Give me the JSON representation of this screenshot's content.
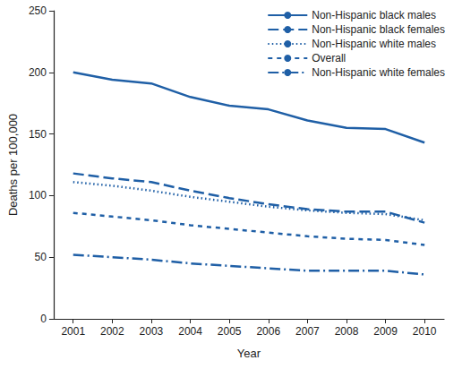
{
  "chart_data": {
    "type": "line",
    "x_label": "Year",
    "y_label": "Deaths per 100,000",
    "categories": [
      "2001",
      "2002",
      "2003",
      "2004",
      "2005",
      "2006",
      "2007",
      "2008",
      "2009",
      "2010"
    ],
    "series": [
      {
        "name": "Non-Hispanic black males",
        "color": "#1f5fa6",
        "line_style": "solid",
        "values": [
          200,
          194,
          191,
          180,
          173,
          170,
          161,
          155,
          154,
          143
        ]
      },
      {
        "name": "Non-Hispanic black females",
        "color": "#1f5fa6",
        "line_style": "longdash",
        "values": [
          118,
          114,
          111,
          104,
          98,
          93,
          89,
          87,
          87,
          78
        ]
      },
      {
        "name": "Non-Hispanic white males",
        "color": "#1f5fa6",
        "line_style": "dotted",
        "values": [
          111,
          108,
          104,
          99,
          95,
          91,
          88,
          86,
          85,
          80
        ]
      },
      {
        "name": "Overall",
        "color": "#1f5fa6",
        "line_style": "dashed",
        "values": [
          86,
          83,
          80,
          76,
          73,
          70,
          67,
          65,
          64,
          60
        ]
      },
      {
        "name": "Non-Hispanic white females",
        "color": "#1f5fa6",
        "line_style": "dashdot",
        "values": [
          52,
          50,
          48,
          45,
          43,
          41,
          39,
          39,
          39,
          36
        ]
      }
    ],
    "ylim": [
      0,
      250
    ],
    "yticks": [
      0,
      50,
      100,
      150,
      200,
      250
    ],
    "grid": false,
    "legend": "top-right"
  }
}
